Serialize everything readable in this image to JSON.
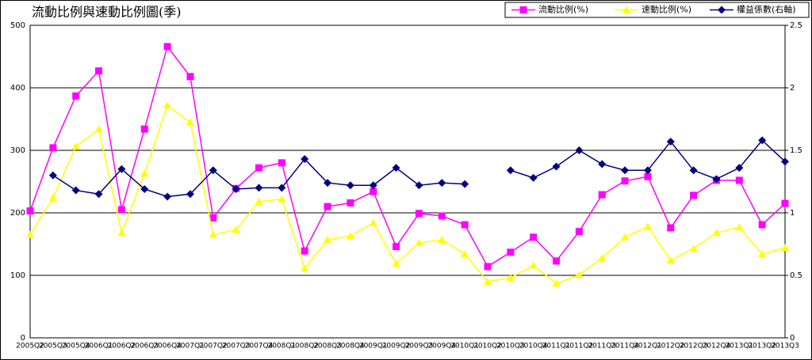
{
  "chart_data": {
    "type": "line",
    "title": "流動比例與速動比例圖(季)",
    "categories": [
      "2005Q2",
      "2005Q3",
      "2005Q4",
      "2006Q1",
      "2006Q2",
      "2006Q3",
      "2006Q4",
      "2007Q1",
      "2007Q2",
      "2007Q3",
      "2007Q4",
      "2008Q1",
      "2008Q2",
      "2008Q3",
      "2008Q4",
      "2009Q1",
      "2009Q2",
      "2009Q3",
      "2009Q4",
      "2010Q1",
      "2010Q2",
      "2010Q3",
      "2010Q4",
      "2011Q1",
      "2011Q2",
      "2011Q3",
      "2011Q4",
      "2012Q1",
      "2012Q2",
      "2012Q3",
      "2012Q4",
      "2013Q1",
      "2013Q2",
      "2013Q3"
    ],
    "series": [
      {
        "name": "流動比例(%)",
        "color": "#ff00ff",
        "values": [
          203,
          304,
          387,
          427,
          205,
          334,
          466,
          418,
          192,
          239,
          272,
          280,
          139,
          210,
          216,
          234,
          146,
          199,
          195,
          181,
          114,
          137,
          161,
          123,
          170,
          229,
          251,
          258,
          176,
          228,
          252,
          252,
          181,
          215
        ]
      },
      {
        "name": "速動比例(%)",
        "color": "#ffff00",
        "values": [
          165,
          224,
          306,
          334,
          168,
          263,
          372,
          345,
          165,
          173,
          218,
          222,
          111,
          157,
          163,
          184,
          119,
          152,
          157,
          134,
          90,
          96,
          116,
          87,
          101,
          128,
          161,
          178,
          124,
          143,
          168,
          177,
          134,
          144
        ]
      },
      {
        "name": "權益係數(右軸)",
        "color": "#000080",
        "axis": "y2",
        "values": [
          null,
          1.3,
          1.18,
          1.15,
          1.35,
          1.19,
          1.13,
          1.15,
          1.34,
          1.19,
          1.2,
          1.2,
          1.43,
          1.24,
          1.22,
          1.22,
          1.36,
          1.22,
          1.24,
          1.23,
          null,
          1.34,
          1.28,
          1.37,
          1.5,
          1.39,
          1.34,
          1.34,
          1.57,
          1.34,
          1.27,
          1.36,
          1.58,
          1.41
        ]
      }
    ],
    "ylim": [
      0,
      500
    ],
    "yticks": [
      0,
      100,
      200,
      300,
      400,
      500
    ],
    "y2lim": [
      0,
      2.5
    ],
    "y2ticks": [
      0,
      0.5,
      1,
      1.5,
      2,
      2.5
    ],
    "grid": true,
    "legend": "top-right"
  }
}
